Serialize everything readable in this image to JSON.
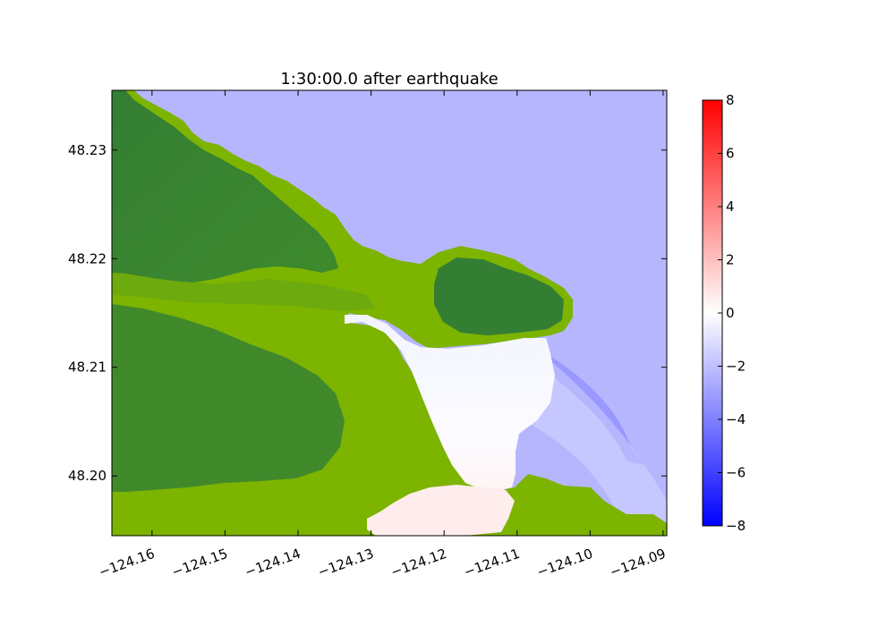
{
  "chart_data": {
    "type": "heatmap",
    "title": "1:30:00.0 after earthquake",
    "xlabel": "",
    "ylabel": "",
    "xlim": [
      -124.1655,
      -124.0895
    ],
    "ylim": [
      48.1945,
      48.2355
    ],
    "x_ticks": [
      -124.16,
      -124.15,
      -124.14,
      -124.13,
      -124.12,
      -124.11,
      -124.1,
      -124.09
    ],
    "x_tick_labels": [
      "−124.16",
      "−124.15",
      "−124.14",
      "−124.13",
      "−124.12",
      "−124.11",
      "−124.10",
      "−124.09"
    ],
    "y_ticks": [
      48.2,
      48.21,
      48.22,
      48.23
    ],
    "y_tick_labels": [
      "48.20",
      "48.21",
      "48.22",
      "48.23"
    ],
    "colorbar": {
      "range": [
        -8,
        8
      ],
      "ticks": [
        8,
        6,
        4,
        2,
        0,
        -2,
        -4,
        -6,
        -8
      ],
      "tick_labels": [
        "8",
        "6",
        "4",
        "2",
        "0",
        "−2",
        "−4",
        "−6",
        "−8"
      ],
      "colors": {
        "min": "#0000ff",
        "mid": "#ffffff",
        "max": "#ff0000"
      }
    },
    "layers": {
      "water_base_level": -2.3,
      "harbor_level": -0.3,
      "inlet_level": 0.6,
      "wave_front_level": -3.6
    },
    "land_colors": {
      "low": "#7cb400",
      "high": "#347e34",
      "dry": "#2e7d32"
    },
    "grid": false,
    "legend": "colorbar-right"
  }
}
